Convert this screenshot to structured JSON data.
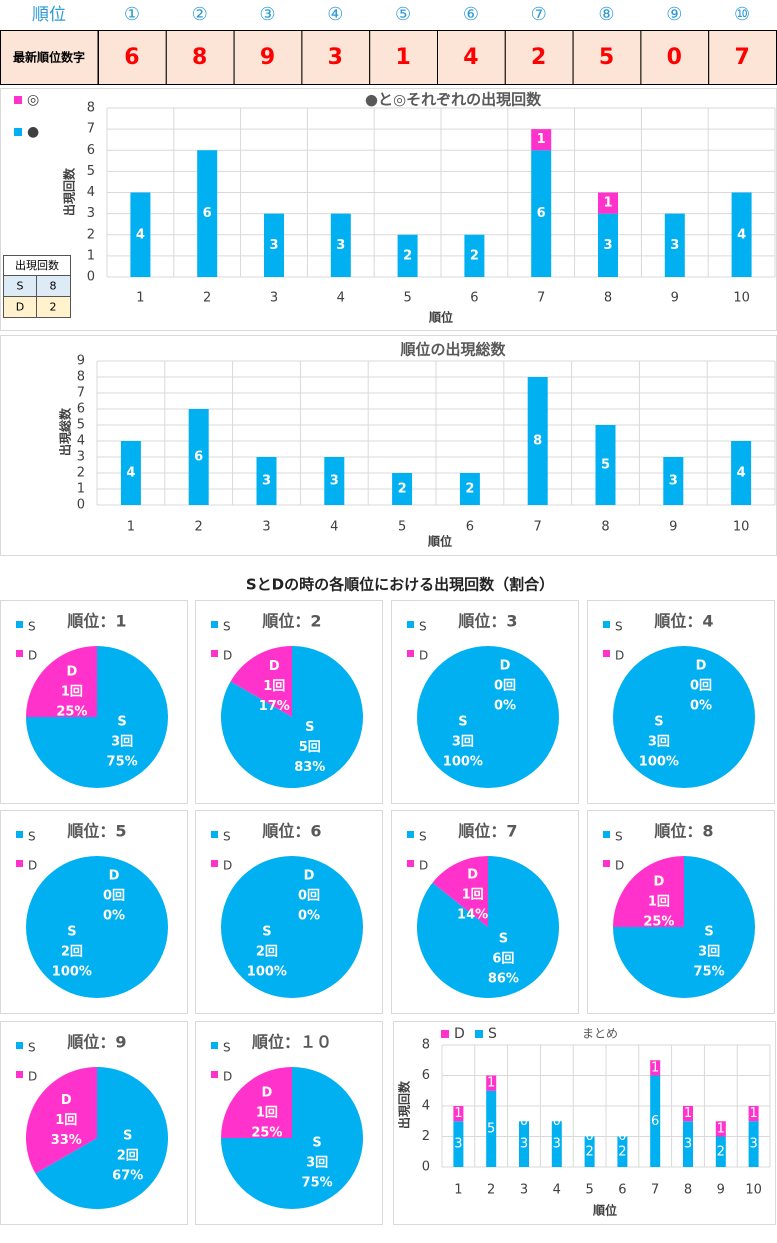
{
  "rank_table": {
    "header": "順位",
    "ranks": [
      "①",
      "②",
      "③",
      "④",
      "⑤",
      "⑥",
      "⑦",
      "⑧",
      "⑨",
      "⑩"
    ],
    "row_label": "最新順位数字",
    "digits": [
      6,
      8,
      9,
      3,
      1,
      4,
      2,
      5,
      0,
      7
    ]
  },
  "count_table": {
    "header": "出現回数",
    "rows": [
      [
        "S",
        8
      ],
      [
        "D",
        2
      ]
    ]
  },
  "pie_section_title": "SとDの時の各順位における出現回数（割合）",
  "chart_data": [
    {
      "type": "stacked_bar",
      "title": "●と◎それぞれの出現回数",
      "x_label": "順位",
      "y_label": "出現回数",
      "categories": [
        "1",
        "2",
        "3",
        "4",
        "5",
        "6",
        "7",
        "8",
        "9",
        "10"
      ],
      "series": [
        {
          "name": "●",
          "color": "#00b0f0",
          "values": [
            4,
            6,
            3,
            3,
            2,
            2,
            6,
            3,
            3,
            4
          ]
        },
        {
          "name": "◎",
          "color": "#ff33cc",
          "values": [
            0,
            0,
            0,
            0,
            0,
            0,
            1,
            1,
            0,
            0
          ]
        }
      ],
      "ylim": [
        0,
        8
      ],
      "yticks": [
        0,
        1,
        2,
        3,
        4,
        5,
        6,
        7,
        8
      ],
      "grid": true,
      "zero_labels": false
    },
    {
      "type": "bar",
      "title": "順位の出現総数",
      "x_label": "順位",
      "y_label": "出現総数",
      "categories": [
        "1",
        "2",
        "3",
        "4",
        "5",
        "6",
        "7",
        "8",
        "9",
        "10"
      ],
      "values": [
        4,
        6,
        3,
        3,
        2,
        2,
        8,
        5,
        3,
        4
      ],
      "color": "#00b0f0",
      "ylim": [
        0,
        9
      ],
      "yticks": [
        0,
        1,
        2,
        3,
        4,
        5,
        6,
        7,
        8,
        9
      ],
      "grid": true
    },
    {
      "type": "pie",
      "title": "順位：1",
      "categories": [
        "S",
        "D"
      ],
      "colors": [
        "#00b0f0",
        "#ff33cc"
      ],
      "values": [
        3,
        1
      ],
      "value_labels": [
        "3回",
        "1回"
      ],
      "percent_labels": [
        "75%",
        "25%"
      ]
    },
    {
      "type": "pie",
      "title": "順位：2",
      "categories": [
        "S",
        "D"
      ],
      "colors": [
        "#00b0f0",
        "#ff33cc"
      ],
      "values": [
        5,
        1
      ],
      "value_labels": [
        "5回",
        "1回"
      ],
      "percent_labels": [
        "83%",
        "17%"
      ]
    },
    {
      "type": "pie",
      "title": "順位：3",
      "categories": [
        "S",
        "D"
      ],
      "colors": [
        "#00b0f0",
        "#ff33cc"
      ],
      "values": [
        3,
        0
      ],
      "value_labels": [
        "3回",
        "0回"
      ],
      "percent_labels": [
        "100%",
        "0%"
      ]
    },
    {
      "type": "pie",
      "title": "順位：4",
      "categories": [
        "S",
        "D"
      ],
      "colors": [
        "#00b0f0",
        "#ff33cc"
      ],
      "values": [
        3,
        0
      ],
      "value_labels": [
        "3回",
        "0回"
      ],
      "percent_labels": [
        "100%",
        "0%"
      ]
    },
    {
      "type": "pie",
      "title": "順位：5",
      "categories": [
        "S",
        "D"
      ],
      "colors": [
        "#00b0f0",
        "#ff33cc"
      ],
      "values": [
        2,
        0
      ],
      "value_labels": [
        "2回",
        "0回"
      ],
      "percent_labels": [
        "100%",
        "0%"
      ]
    },
    {
      "type": "pie",
      "title": "順位：6",
      "categories": [
        "S",
        "D"
      ],
      "colors": [
        "#00b0f0",
        "#ff33cc"
      ],
      "values": [
        2,
        0
      ],
      "value_labels": [
        "2回",
        "0回"
      ],
      "percent_labels": [
        "100%",
        "0%"
      ]
    },
    {
      "type": "pie",
      "title": "順位：7",
      "categories": [
        "S",
        "D"
      ],
      "colors": [
        "#00b0f0",
        "#ff33cc"
      ],
      "values": [
        6,
        1
      ],
      "value_labels": [
        "6回",
        "1回"
      ],
      "percent_labels": [
        "86%",
        "14%"
      ]
    },
    {
      "type": "pie",
      "title": "順位：8",
      "categories": [
        "S",
        "D"
      ],
      "colors": [
        "#00b0f0",
        "#ff33cc"
      ],
      "values": [
        3,
        1
      ],
      "value_labels": [
        "3回",
        "1回"
      ],
      "percent_labels": [
        "75%",
        "25%"
      ]
    },
    {
      "type": "pie",
      "title": "順位：9",
      "categories": [
        "S",
        "D"
      ],
      "colors": [
        "#00b0f0",
        "#ff33cc"
      ],
      "values": [
        2,
        1
      ],
      "value_labels": [
        "2回",
        "1回"
      ],
      "percent_labels": [
        "67%",
        "33%"
      ]
    },
    {
      "type": "pie",
      "title": "順位：１０",
      "categories": [
        "S",
        "D"
      ],
      "colors": [
        "#00b0f0",
        "#ff33cc"
      ],
      "values": [
        3,
        1
      ],
      "value_labels": [
        "3回",
        "1回"
      ],
      "percent_labels": [
        "75%",
        "25%"
      ]
    },
    {
      "type": "stacked_bar",
      "title": "まとめ",
      "x_label": "順位",
      "y_label": "出現回数",
      "categories": [
        "1",
        "2",
        "3",
        "4",
        "5",
        "6",
        "7",
        "8",
        "9",
        "10"
      ],
      "series": [
        {
          "name": "S",
          "color": "#00b0f0",
          "values": [
            3,
            5,
            3,
            3,
            2,
            2,
            6,
            3,
            2,
            3
          ]
        },
        {
          "name": "D",
          "color": "#ff33cc",
          "values": [
            1,
            1,
            0,
            0,
            0,
            0,
            1,
            1,
            1,
            1
          ]
        }
      ],
      "ylim": [
        0,
        8
      ],
      "yticks": [
        0,
        2,
        4,
        6,
        8
      ],
      "grid": true,
      "zero_labels": true
    }
  ]
}
